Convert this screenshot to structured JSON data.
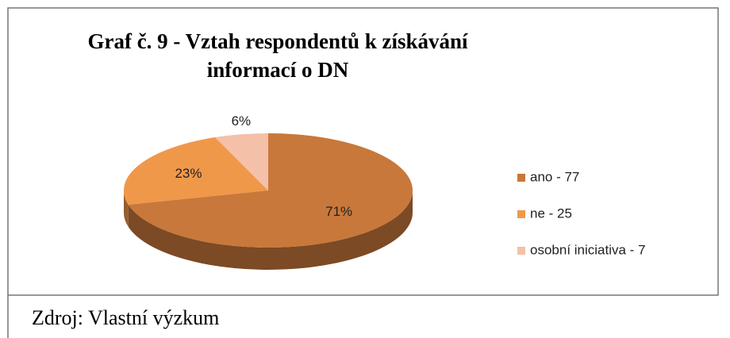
{
  "chart_data": {
    "type": "pie",
    "title": "Graf č. 9 - Vztah respondentů k získávání informací o DN",
    "categories": [
      "ano - 77",
      "ne - 25",
      "osobní iniciativa - 7"
    ],
    "values": [
      71,
      23,
      6
    ],
    "value_labels": [
      "71%",
      "23%",
      "6%"
    ],
    "colors": [
      "#c8783a",
      "#f0984a",
      "#f5c0a8"
    ],
    "source": "Zdroj: Vlastní výzkum"
  }
}
